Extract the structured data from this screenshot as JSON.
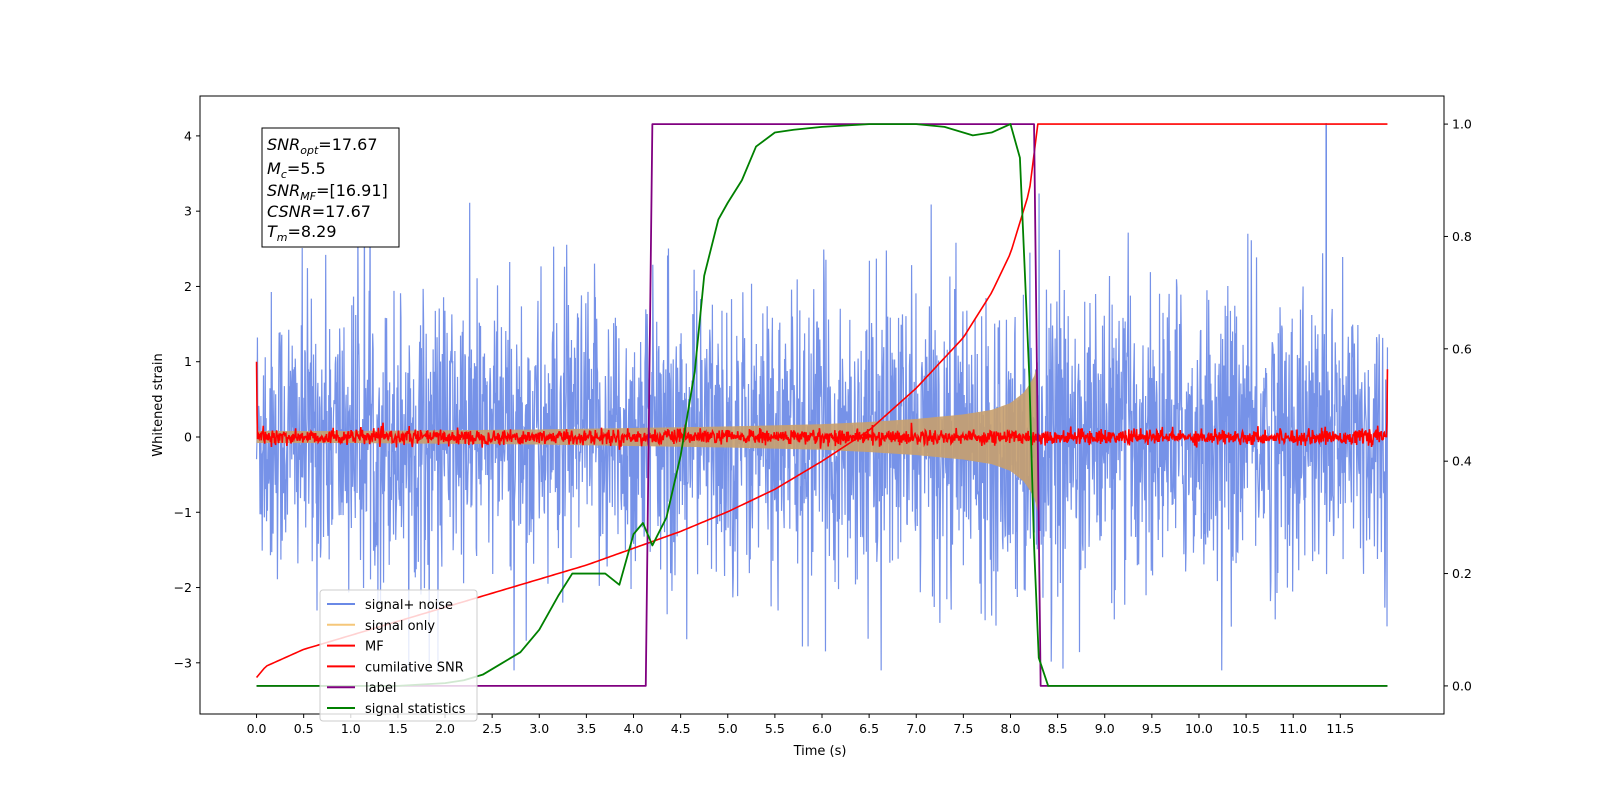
{
  "chart_data": {
    "type": "line",
    "title": "",
    "xlabel": "Time (s)",
    "ylabel": "Whitened strain",
    "y2label": "",
    "xlim": [
      -0.6,
      12.6
    ],
    "ylim": [
      -3.68,
      4.53
    ],
    "y2lim": [
      -0.05,
      1.05
    ],
    "xticks": [
      0.0,
      0.5,
      1.0,
      1.5,
      2.0,
      2.5,
      3.0,
      3.5,
      4.0,
      4.5,
      5.0,
      5.5,
      6.0,
      6.5,
      7.0,
      7.5,
      8.0,
      8.5,
      9.0,
      9.5,
      10.0,
      10.5,
      11.0,
      11.5
    ],
    "xtick_labels": [
      "0.0",
      "0.5",
      "1.0",
      "1.5",
      "2.0",
      "2.5",
      "3.0",
      "3.5",
      "4.0",
      "4.5",
      "5.0",
      "5.5",
      "6.0",
      "6.5",
      "7.0",
      "7.5",
      "8.0",
      "8.5",
      "9.0",
      "9.5",
      "10.0",
      "10.5",
      "11.0",
      "11.5"
    ],
    "yticks": [
      -3,
      -2,
      -1,
      0,
      1,
      2,
      3,
      4
    ],
    "ytick_labels": [
      "−3",
      "−2",
      "−1",
      "0",
      "1",
      "2",
      "3",
      "4"
    ],
    "y2ticks": [
      0.0,
      0.2,
      0.4,
      0.6,
      0.8,
      1.0
    ],
    "y2tick_labels": [
      "0.0",
      "0.2",
      "0.4",
      "0.6",
      "0.8",
      "1.0"
    ],
    "grid": false,
    "legend_position": "bottom-left",
    "series": [
      {
        "name": "signal+ noise",
        "axis": "left",
        "color": "#6a89e6",
        "kind": "noise",
        "x_range": [
          0.0,
          12.0
        ],
        "typical_amplitude": 1.0,
        "peak_range": [
          -3.1,
          4.17
        ],
        "notable_spike": {
          "x": 11.35,
          "y": 4.17
        }
      },
      {
        "name": "signal only",
        "axis": "left",
        "color": "#f5c77a",
        "kind": "chirp_envelope",
        "x": [
          0.0,
          1.0,
          2.0,
          3.0,
          4.0,
          5.0,
          6.0,
          6.5,
          7.0,
          7.5,
          7.8,
          8.0,
          8.15,
          8.25,
          8.29
        ],
        "envelope": [
          0.08,
          0.08,
          0.09,
          0.1,
          0.12,
          0.14,
          0.17,
          0.2,
          0.24,
          0.3,
          0.36,
          0.45,
          0.6,
          0.8,
          1.0
        ]
      },
      {
        "name": "MF",
        "axis": "left",
        "color": "#ff0000",
        "kind": "noise",
        "x_range": [
          0.0,
          12.0
        ],
        "typical_amplitude": 0.05,
        "edge_values": {
          "start": 1.0,
          "end": 0.9
        }
      },
      {
        "name": "cumilative SNR",
        "axis": "right",
        "color": "#ff0000",
        "x": [
          0.0,
          0.1,
          0.5,
          1.0,
          1.5,
          2.0,
          2.5,
          3.0,
          3.5,
          4.0,
          4.5,
          5.0,
          5.5,
          6.0,
          6.5,
          7.0,
          7.5,
          7.8,
          8.0,
          8.2,
          8.29,
          8.3,
          12.0
        ],
        "y": [
          0.015,
          0.035,
          0.065,
          0.09,
          0.115,
          0.14,
          0.165,
          0.19,
          0.215,
          0.245,
          0.275,
          0.31,
          0.35,
          0.4,
          0.455,
          0.53,
          0.62,
          0.7,
          0.77,
          0.88,
          1.0,
          1.0,
          1.0
        ]
      },
      {
        "name": "label",
        "axis": "right",
        "color": "#800080",
        "x": [
          0.0,
          4.13,
          4.2,
          8.25,
          8.32,
          12.0
        ],
        "y": [
          0.0,
          0.0,
          1.0,
          1.0,
          0.0,
          0.0
        ]
      },
      {
        "name": "signal statistics",
        "axis": "right",
        "color": "#008000",
        "x": [
          0.0,
          0.5,
          1.0,
          1.5,
          2.0,
          2.2,
          2.4,
          2.6,
          2.8,
          3.0,
          3.2,
          3.35,
          3.5,
          3.7,
          3.85,
          4.0,
          4.1,
          4.2,
          4.35,
          4.5,
          4.65,
          4.75,
          4.9,
          5.0,
          5.15,
          5.3,
          5.5,
          5.7,
          6.0,
          6.5,
          7.0,
          7.3,
          7.6,
          7.8,
          8.0,
          8.1,
          8.2,
          8.25,
          8.3,
          8.4,
          9.0,
          10.0,
          11.0,
          12.0
        ],
        "y": [
          0.0,
          0.0,
          0.0,
          0.0,
          0.005,
          0.01,
          0.02,
          0.04,
          0.06,
          0.1,
          0.16,
          0.2,
          0.2,
          0.2,
          0.18,
          0.27,
          0.29,
          0.25,
          0.3,
          0.41,
          0.56,
          0.73,
          0.83,
          0.86,
          0.9,
          0.96,
          0.985,
          0.99,
          0.995,
          1.0,
          1.0,
          0.995,
          0.98,
          0.985,
          1.0,
          0.94,
          0.55,
          0.25,
          0.05,
          0.0,
          0.0,
          0.0,
          0.0,
          0.0
        ]
      }
    ],
    "annotation_box": {
      "lines": [
        {
          "base": "SNR",
          "sub": "opt",
          "value": "=17.67"
        },
        {
          "base": "M",
          "sub": "c",
          "value": "=5.5"
        },
        {
          "base": "SNR",
          "sub": "MF",
          "value": "=[16.91]"
        },
        {
          "base": "CSNR",
          "sub": "",
          "value": "=17.67"
        },
        {
          "base": "T",
          "sub": "m",
          "value": "=8.29"
        }
      ]
    }
  }
}
